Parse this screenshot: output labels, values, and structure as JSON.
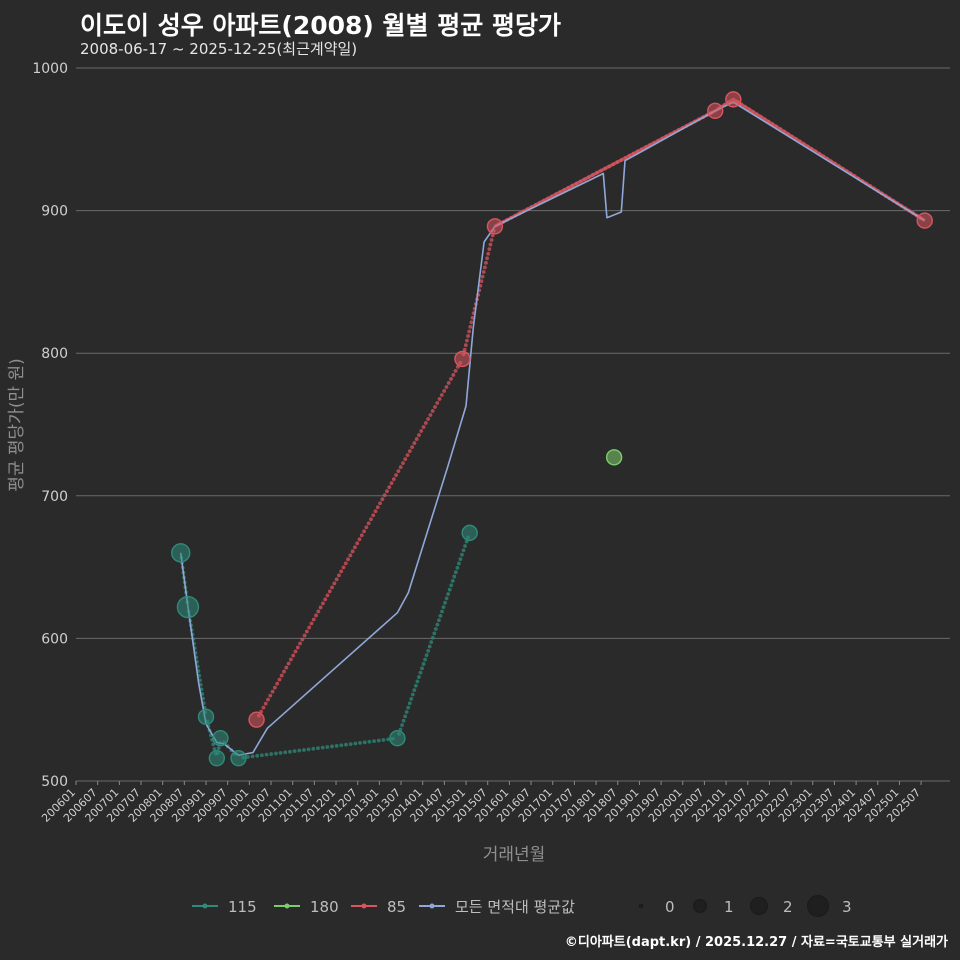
{
  "header": {
    "title": "이도이 성우 아파트(2008) 월별 평균 평당가",
    "subtitle": "2008-06-17 ~ 2025-12-25(최근계약일)"
  },
  "footer": "©디아파트(dapt.kr) / 2025.12.27 / 자료=국토교통부 실거래가",
  "colors": {
    "s115": "#2e8b7a",
    "s180": "#7ccc6a",
    "s85": "#d9555f",
    "avg": "#8fa8d8"
  },
  "chart_data": {
    "type": "scatter",
    "title": "이도이 성우 아파트(2008) 월별 평균 평당가",
    "xlabel": "거래년월",
    "ylabel": "평균 평당가(만 원)",
    "ylim": [
      500,
      1000
    ],
    "yticks": [
      500,
      600,
      700,
      800,
      900,
      1000
    ],
    "x_start": "2006-01",
    "x_end": "2026-03",
    "xticks": [
      "200601",
      "200607",
      "200701",
      "200707",
      "200801",
      "200807",
      "200901",
      "200907",
      "201001",
      "201007",
      "201101",
      "201107",
      "201201",
      "201207",
      "201301",
      "201307",
      "201401",
      "201407",
      "201501",
      "201507",
      "201601",
      "201607",
      "201701",
      "201707",
      "201801",
      "201807",
      "201901",
      "201907",
      "202001",
      "202007",
      "202101",
      "202107",
      "202201",
      "202207",
      "202301",
      "202307",
      "202401",
      "202407",
      "202501",
      "202507"
    ],
    "series": [
      {
        "name": "115",
        "color_key": "s115",
        "points": [
          [
            "2008-06",
            660,
            2
          ],
          [
            "2008-08",
            622,
            3
          ],
          [
            "2009-01",
            545,
            1
          ],
          [
            "2009-04",
            516,
            1
          ],
          [
            "2009-05",
            530,
            1
          ],
          [
            "2009-10",
            516,
            1
          ],
          [
            "2013-06",
            530,
            1
          ],
          [
            "2015-02",
            674,
            1
          ]
        ]
      },
      {
        "name": "180",
        "color_key": "s180",
        "points": [
          [
            "2018-06",
            727,
            1
          ]
        ]
      },
      {
        "name": "85",
        "color_key": "s85",
        "points": [
          [
            "2010-03",
            543,
            1
          ],
          [
            "2014-12",
            796,
            1
          ],
          [
            "2015-09",
            889,
            1
          ],
          [
            "2020-10",
            970,
            1
          ],
          [
            "2021-03",
            978,
            1
          ],
          [
            "2025-08",
            893,
            1
          ]
        ]
      }
    ],
    "average_line": {
      "name": "모든 면적대 평균값",
      "points": [
        [
          "2008-06",
          660
        ],
        [
          "2008-08",
          622
        ],
        [
          "2008-11",
          568
        ],
        [
          "2009-01",
          540
        ],
        [
          "2009-04",
          527
        ],
        [
          "2009-06",
          526
        ],
        [
          "2009-10",
          518
        ],
        [
          "2010-02",
          520
        ],
        [
          "2010-06",
          537
        ],
        [
          "2013-06",
          618
        ],
        [
          "2013-09",
          632
        ],
        [
          "2014-08",
          721
        ],
        [
          "2015-01",
          763
        ],
        [
          "2015-03",
          818
        ],
        [
          "2015-06",
          878
        ],
        [
          "2015-09",
          889
        ],
        [
          "2018-03",
          926
        ],
        [
          "2018-04",
          895
        ],
        [
          "2018-08",
          899
        ],
        [
          "2018-09",
          935
        ],
        [
          "2020-10",
          970
        ],
        [
          "2021-03",
          976
        ],
        [
          "2025-08",
          893
        ]
      ]
    },
    "legend": {
      "series_labels": [
        "115",
        "180",
        "85",
        "모든 면적대 평균값"
      ],
      "size_labels": [
        "0",
        "1",
        "2",
        "3"
      ]
    }
  }
}
